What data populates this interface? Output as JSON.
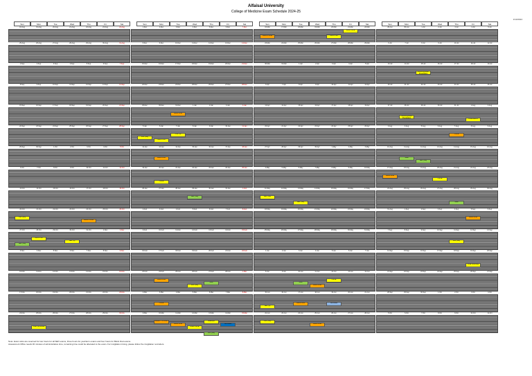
{
  "title": "Alfaisal University",
  "subtitle": "College of Medicine Exam Schedule 2024-25",
  "updated": "1/10/2024",
  "day_headers": [
    "Sun",
    "Mon",
    "Tue",
    "Wed",
    "Thu",
    "Fri",
    "Sat"
  ],
  "notes": [
    "Note: Exam slots are reserved for two hours for all SEP exams, three hours for year/term exams and four hours for Block final exams.",
    "Assessment Office needs 30 minutes of administrative time, remaining time could be allocated to the exam. For invigilation timing, please follow the invigilation reminders."
  ],
  "quarters": [
    {
      "dates": [
        "18-Aug",
        "19-Aug",
        "20-Aug",
        "21-Aug",
        "22-Aug",
        "23-Aug",
        "24-Aug"
      ],
      "weeks": [
        [
          "25-Aug",
          "26-Aug",
          "27-Aug",
          "28-Aug",
          "29-Aug",
          "30-Aug",
          "31-Aug"
        ],
        [
          "1-Sep",
          "2-Sep",
          "3-Sep",
          "4-Sep",
          "5-Sep",
          "6-Sep",
          "7-Sep"
        ],
        [
          "8-Sep",
          "9-Sep",
          "10-Sep",
          "11-Sep",
          "12-Sep",
          "13-Sep",
          "14-Sep"
        ],
        [
          "15-Sep",
          "16-Sep",
          "17-Sep",
          "18-Sep",
          "19-Sep",
          "20-Sep",
          "21-Sep"
        ],
        [
          "22-Sep",
          "23-Sep",
          "24-Sep",
          "25-Sep",
          "26-Sep",
          "27-Sep",
          "28-Sep"
        ],
        [
          "29-Sep",
          "30-Sep",
          "1-Oct",
          "2-Oct",
          "3-Oct",
          "4-Oct",
          "5-Oct"
        ],
        [
          "6-Oct",
          "7-Oct",
          "8-Oct",
          "9-Oct",
          "10-Oct",
          "11-Oct",
          "12-Oct"
        ],
        [
          "13-Oct",
          "14-Oct",
          "15-Oct",
          "16-Oct",
          "17-Oct",
          "18-Oct",
          "19-Oct"
        ],
        [
          "20-Oct",
          "21-Oct",
          "22-Oct",
          "23-Oct",
          "24-Oct",
          "25-Oct",
          "26-Oct"
        ],
        [
          "27-Oct",
          "28-Oct",
          "29-Oct",
          "30-Oct",
          "31-Oct",
          "1-Nov",
          "2-Nov"
        ],
        [
          "3-Nov",
          "4-Nov",
          "5-Nov",
          "6-Nov",
          "7-Nov",
          "8-Nov",
          "9-Nov"
        ],
        [
          "10-Nov",
          "11-Nov",
          "12-Nov",
          "13-Nov",
          "14-Nov",
          "15-Nov",
          "16-Nov"
        ],
        [
          "17-Nov",
          "18-Nov",
          "19-Nov",
          "20-Nov",
          "21-Nov",
          "22-Nov",
          "23-Nov"
        ],
        [
          "24-Nov",
          "25-Nov",
          "26-Nov",
          "27-Nov",
          "28-Nov",
          "29-Nov",
          "30-Nov"
        ]
      ]
    },
    {
      "dates": [
        "1-Dec",
        "2-Dec",
        "3-Dec",
        "4-Dec",
        "5-Dec",
        "6-Dec",
        "7-Dec"
      ],
      "weeks": [
        [
          "8-Dec",
          "9-Dec",
          "10-Dec",
          "11-Dec",
          "12-Dec",
          "13-Dec",
          "14-Dec"
        ],
        [
          "15-Dec",
          "16-Dec",
          "17-Dec",
          "18-Dec",
          "19-Dec",
          "20-Dec",
          "21-Dec"
        ],
        [
          "22-Dec",
          "23-Dec",
          "24-Dec",
          "25-Dec",
          "26-Dec",
          "27-Dec",
          "28-Dec"
        ],
        [
          "29-Dec",
          "30-Dec",
          "31-Dec",
          "1-Jan",
          "2-Jan",
          "3-Jan",
          "4-Jan"
        ],
        [
          "5-Jan",
          "6-Jan",
          "7-Jan",
          "8-Jan",
          "9-Jan",
          "10-Jan",
          "11-Jan"
        ],
        [
          "12-Jan",
          "13-Jan",
          "14-Jan",
          "15-Jan",
          "16-Jan",
          "17-Jan",
          "18-Jan"
        ],
        [
          "19-Jan",
          "20-Jan",
          "21-Jan",
          "22-Jan",
          "23-Jan",
          "24-Jan",
          "25-Jan"
        ],
        [
          "26-Jan",
          "27-Jan",
          "28-Jan",
          "29-Jan",
          "30-Jan",
          "31-Jan",
          "1-Feb"
        ],
        [
          "2-Feb",
          "3-Feb",
          "4-Feb",
          "5-Feb",
          "6-Feb",
          "7-Feb",
          "8-Feb"
        ],
        [
          "9-Feb",
          "10-Feb",
          "11-Feb",
          "12-Feb",
          "13-Feb",
          "14-Feb",
          "15-Feb"
        ],
        [
          "16-Feb",
          "17-Feb",
          "18-Feb",
          "19-Feb",
          "20-Feb",
          "21-Feb",
          "22-Feb"
        ],
        [
          "23-Feb",
          "24-Feb",
          "25-Feb",
          "26-Feb",
          "27-Feb",
          "28-Feb",
          "1-Mar"
        ],
        [
          "2-Mar",
          "3-Mar",
          "4-Mar",
          "5-Mar",
          "6-Mar",
          "7-Mar",
          "8-Mar"
        ],
        [
          "9-Mar",
          "10-Mar",
          "11-Mar",
          "12-Mar",
          "13-Mar",
          "14-Mar",
          "15-Mar"
        ]
      ]
    },
    {
      "dates": [
        "16-Mar",
        "17-Mar",
        "18-Mar",
        "19-Mar",
        "20-Mar",
        "21-Mar",
        "22-Mar"
      ],
      "weeks": [
        [
          "23-Mar",
          "24-Mar",
          "25-Mar",
          "26-Mar",
          "27-Mar",
          "28-Mar",
          "29-Mar"
        ],
        [
          "30-Mar",
          "31-Mar",
          "1-Apr",
          "2-Apr",
          "3-Apr",
          "4-Apr",
          "5-Apr"
        ],
        [
          "6-Apr",
          "7-Apr",
          "8-Apr",
          "9-Apr",
          "10-Apr",
          "11-Apr",
          "12-Apr"
        ],
        [
          "13-Apr",
          "14-Apr",
          "15-Apr",
          "16-Apr",
          "17-Apr",
          "18-Apr",
          "19-Apr"
        ],
        [
          "20-Apr",
          "21-Apr",
          "22-Apr",
          "23-Apr",
          "24-Apr",
          "25-Apr",
          "26-Apr"
        ],
        [
          "27-Apr",
          "28-Apr",
          "29-Apr",
          "30-Apr",
          "1-May",
          "2-May",
          "3-May"
        ],
        [
          "4-May",
          "5-May",
          "6-May",
          "7-May",
          "8-May",
          "9-May",
          "10-May"
        ],
        [
          "11-May",
          "12-May",
          "13-May",
          "14-May",
          "15-May",
          "16-May",
          "17-May"
        ],
        [
          "18-May",
          "19-May",
          "20-May",
          "21-May",
          "22-May",
          "23-May",
          "24-May"
        ],
        [
          "25-May",
          "26-May",
          "27-May",
          "28-May",
          "29-May",
          "30-May",
          "31-May"
        ],
        [
          "1-Jun",
          "2-Jun",
          "3-Jun",
          "4-Jun",
          "5-Jun",
          "6-Jun",
          "7-Jun"
        ],
        [
          "8-Jun",
          "9-Jun",
          "10-Jun",
          "11-Jun",
          "12-Jun",
          "13-Jun",
          "14-Jun"
        ],
        [
          "15-Jun",
          "16-Jun",
          "17-Jun",
          "18-Jun",
          "19-Jun",
          "20-Jun",
          "21-Jun"
        ],
        [
          "22-Jun",
          "23-Jun",
          "24-Jun",
          "25-Jun",
          "26-Jun",
          "27-Jun",
          "28-Jun"
        ]
      ]
    },
    {
      "dates": [
        "29-Jun",
        "30-Jun",
        "1-Jul",
        "2-Jul",
        "3-Jul",
        "4-Jul",
        "5-Jul"
      ],
      "weeks": [
        [
          "6-Jul",
          "7-Jul",
          "8-Jul",
          "9-Jul",
          "10-Jul",
          "11-Jul",
          "12-Jul"
        ],
        [
          "13-Jul",
          "14-Jul",
          "15-Jul",
          "16-Jul",
          "17-Jul",
          "18-Jul",
          "19-Jul"
        ],
        [
          "20-Jul",
          "21-Jul",
          "22-Jul",
          "23-Jul",
          "24-Jul",
          "25-Jul",
          "26-Jul"
        ],
        [
          "27-Jul",
          "28-Jul",
          "29-Jul",
          "30-Jul",
          "31-Jul",
          "1-Aug",
          "2-Aug"
        ],
        [
          "3-Aug",
          "4-Aug",
          "5-Aug",
          "6-Aug",
          "7-Aug",
          "8-Aug",
          "9-Aug"
        ],
        [
          "10-Aug",
          "11-Aug",
          "12-Aug",
          "13-Aug",
          "14-Aug",
          "15-Aug",
          "16-Aug"
        ],
        [
          "17-Aug",
          "18-Aug",
          "19-Aug",
          "20-Aug",
          "21-Aug",
          "22-Aug",
          "23-Aug"
        ],
        [
          "24-Aug",
          "25-Aug",
          "26-Aug",
          "27-Aug",
          "28-Aug",
          "29-Aug",
          "30-Aug"
        ],
        [
          "31-Aug",
          "1-Sep",
          "2-Sep",
          "3-Sep",
          "4-Sep",
          "5-Sep",
          "6-Sep"
        ],
        [
          "7-Sep",
          "8-Sep",
          "9-Sep",
          "10-Sep",
          "11-Sep",
          "12-Sep",
          "13-Sep"
        ],
        [
          "14-Sep",
          "15-Sep",
          "16-Sep",
          "17-Sep",
          "18-Sep",
          "19-Sep",
          "20-Sep"
        ],
        [
          "21-Sep",
          "22-Sep",
          "23-Sep",
          "24-Sep",
          "25-Sep",
          "26-Sep",
          "27-Sep"
        ],
        [
          "28-Sep",
          "29-Sep",
          "30-Sep",
          "1-Oct",
          "2-Oct",
          "3-Oct",
          "4-Oct"
        ],
        [
          "5-Oct",
          "6-Oct",
          "7-Oct",
          "8-Oct",
          "9-Oct",
          "10-Oct",
          "11-Oct"
        ]
      ]
    }
  ],
  "events": [
    {
      "label": "CSP (ES)",
      "color": "#ffff00"
    },
    {
      "label": "Block 4 Final",
      "color": "#ffa500"
    },
    {
      "label": "SEP (SG)",
      "color": "#92d050"
    },
    {
      "label": "GNS 1 SS",
      "color": "#ffff00"
    },
    {
      "label": "SEP (S)",
      "color": "#ffff00"
    },
    {
      "label": "CSP (S) OFPE",
      "color": "#ffff00"
    },
    {
      "label": "Block Final",
      "color": "#ffa500"
    },
    {
      "label": "PBL (SG)",
      "color": "#ffff00"
    },
    {
      "label": "GNS 1 SS",
      "color": "#ffff00"
    },
    {
      "label": "CSP (S)",
      "color": "#ffff00"
    },
    {
      "label": "Block Final",
      "color": "#ffa500"
    },
    {
      "label": "OSCE",
      "color": "#ffff00"
    },
    {
      "label": "Block Final",
      "color": "#ffa500"
    },
    {
      "label": "Shelf",
      "color": "#92d050"
    },
    {
      "label": "PBL (SG)",
      "color": "#ffff00"
    },
    {
      "label": "Blocks 7 HF 2025",
      "color": "#ffa500"
    },
    {
      "label": "Block Final",
      "color": "#ffa500"
    },
    {
      "label": "Shelf OSCE",
      "color": "#ffff00"
    },
    {
      "label": "Makeups",
      "color": "#ffff00"
    },
    {
      "label": "Remedial",
      "color": "#0070c0"
    },
    {
      "label": "PBL (SG)",
      "color": "#92d050"
    },
    {
      "label": "SEP (SG)",
      "color": "#92d050"
    },
    {
      "label": "OSCE",
      "color": "#ffa500"
    },
    {
      "label": "Block 9 Final",
      "color": "#ffa500"
    },
    {
      "label": "SEP (SG)",
      "color": "#ffff00"
    },
    {
      "label": "Block Final",
      "color": "#ffa500"
    },
    {
      "label": "SEP (S)",
      "color": "#ffff00"
    },
    {
      "label": "CSP (SG)",
      "color": "#ffff00"
    },
    {
      "label": "Shelf",
      "color": "#92d050"
    },
    {
      "label": "Block Final",
      "color": "#ffa500"
    },
    {
      "label": "OSCE",
      "color": "#ffff00"
    },
    {
      "label": "Remedial",
      "color": "#8db4e2"
    },
    {
      "label": "GNS 1 SS",
      "color": "#ffff00"
    },
    {
      "label": "Final OSCE",
      "color": "#ffff00"
    },
    {
      "label": "Block Final",
      "color": "#ffa500"
    },
    {
      "label": "SEP (SG)",
      "color": "#ffff00"
    },
    {
      "label": "Licensing Exam Preparation",
      "color": "#ffff00"
    },
    {
      "label": "Licensing Exam Preparation",
      "color": "#ffff00"
    },
    {
      "label": "Final Exams",
      "color": "#ffff00"
    },
    {
      "label": "OSCE",
      "color": "#ffa500"
    },
    {
      "label": "Shelf",
      "color": "#92d050"
    },
    {
      "label": "SEP (SG)",
      "color": "#92d050"
    },
    {
      "label": "Block Final",
      "color": "#ffa500"
    },
    {
      "label": "OSCE",
      "color": "#ffff00"
    },
    {
      "label": "Shelf",
      "color": "#92d050"
    },
    {
      "label": "Block Final",
      "color": "#ffa500"
    },
    {
      "label": "PBL (SG)",
      "color": "#ffff00"
    },
    {
      "label": "Final Licensing",
      "color": "#ffff00"
    }
  ]
}
